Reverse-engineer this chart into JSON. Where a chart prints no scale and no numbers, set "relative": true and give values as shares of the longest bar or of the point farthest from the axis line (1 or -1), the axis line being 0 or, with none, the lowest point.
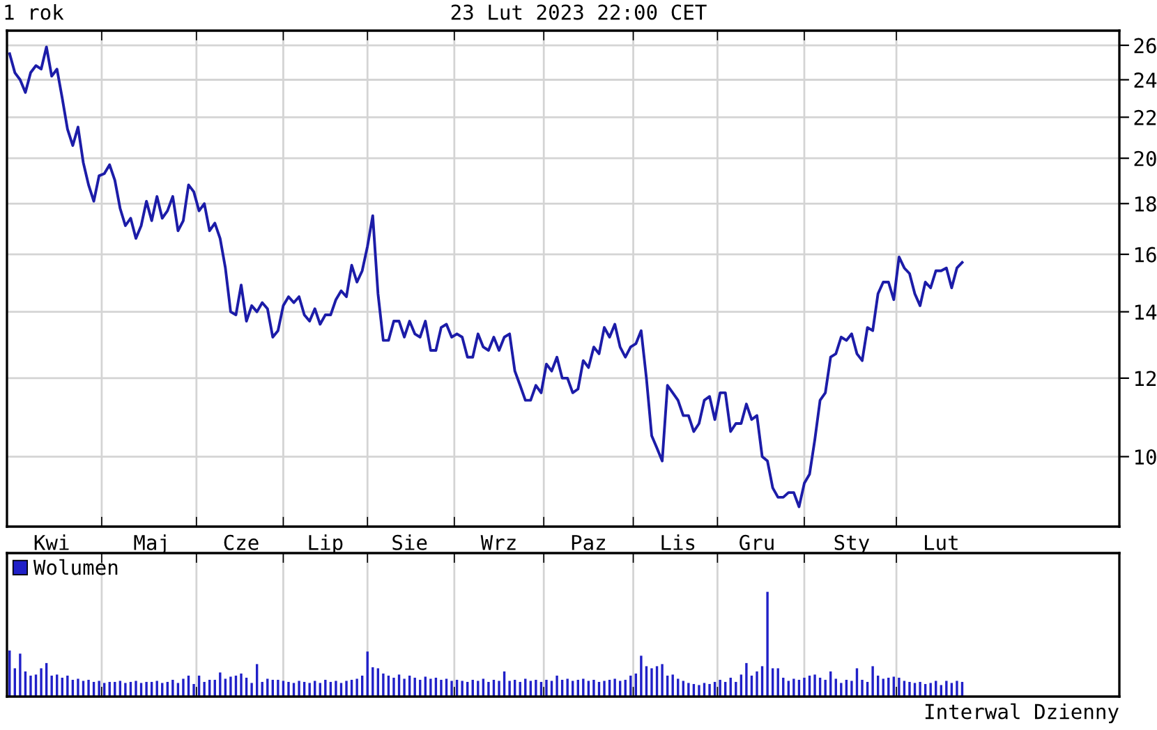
{
  "chart_data": [
    {
      "type": "line",
      "title": "1 rok",
      "subtitle": "23 Lut 2023 22:00 CET",
      "categories": [
        null,
        null,
        null,
        null,
        null,
        null,
        null,
        null,
        "Kwi",
        null,
        null,
        null,
        null,
        null,
        null,
        null,
        null,
        null,
        null,
        null,
        null,
        null,
        null,
        null,
        null,
        null,
        null,
        "Maj",
        null,
        null,
        null,
        null,
        null,
        null,
        null,
        null,
        null,
        null,
        null,
        null,
        null,
        null,
        null,
        null,
        "Cze",
        null,
        null,
        null,
        null,
        null,
        null,
        null,
        null,
        null,
        null,
        null,
        null,
        null,
        null,
        null,
        "Lip",
        null,
        null,
        null,
        null,
        null,
        null,
        null,
        null,
        null,
        null,
        null,
        null,
        null,
        null,
        null,
        "Sie",
        null,
        null,
        null,
        null,
        null,
        null,
        null,
        null,
        null,
        null,
        null,
        null,
        null,
        null,
        null,
        null,
        "Wrz",
        null,
        null,
        null,
        null,
        null,
        null,
        null,
        null,
        null,
        null,
        null,
        null,
        null,
        null,
        null,
        null,
        "Paz",
        null,
        null,
        null,
        null,
        null,
        null,
        null,
        null,
        null,
        null,
        null,
        null,
        null,
        null,
        null,
        null,
        "Lis",
        null,
        null,
        null,
        null,
        null,
        null,
        null,
        null,
        null,
        null,
        null,
        null,
        null,
        null,
        "Gru",
        null,
        null,
        null,
        null,
        null,
        null,
        null,
        null,
        null,
        null,
        null,
        null,
        null,
        null,
        null,
        null,
        null,
        "Sty",
        null,
        null,
        null,
        null,
        null,
        null,
        null,
        null,
        null,
        null,
        null,
        null,
        null,
        null,
        null,
        null,
        "Lut",
        null,
        null,
        null,
        null
      ],
      "series": [
        {
          "color": "#1c1ca8",
          "values": [
            25.5,
            24.4,
            24.0,
            23.3,
            24.4,
            24.8,
            24.6,
            25.9,
            24.2,
            24.6,
            23.0,
            21.4,
            20.6,
            21.5,
            19.8,
            18.8,
            18.1,
            19.2,
            19.3,
            19.7,
            19.0,
            17.8,
            17.1,
            17.4,
            16.6,
            17.1,
            18.1,
            17.3,
            18.3,
            17.4,
            17.7,
            18.3,
            16.9,
            17.3,
            18.8,
            18.5,
            17.7,
            18.0,
            16.9,
            17.2,
            16.6,
            15.5,
            14.0,
            13.9,
            14.9,
            13.7,
            14.2,
            14.0,
            14.3,
            14.1,
            13.2,
            13.4,
            14.2,
            14.5,
            14.3,
            14.5,
            13.9,
            13.7,
            14.1,
            13.6,
            13.9,
            13.9,
            14.4,
            14.7,
            14.5,
            15.6,
            15.0,
            15.4,
            16.3,
            17.5,
            14.6,
            13.1,
            13.1,
            13.7,
            13.7,
            13.2,
            13.7,
            13.3,
            13.2,
            13.7,
            12.8,
            12.8,
            13.5,
            13.6,
            13.2,
            13.3,
            13.2,
            12.6,
            12.6,
            13.3,
            12.9,
            12.8,
            13.2,
            12.8,
            13.2,
            13.3,
            12.2,
            11.8,
            11.4,
            11.4,
            11.8,
            11.6,
            12.4,
            12.2,
            12.6,
            12.0,
            12.0,
            11.6,
            11.7,
            12.5,
            12.3,
            12.9,
            12.7,
            13.5,
            13.2,
            13.6,
            12.9,
            12.6,
            12.9,
            13.0,
            13.4,
            12.0,
            10.5,
            10.2,
            9.9,
            11.8,
            11.6,
            11.4,
            11.0,
            11.0,
            10.6,
            10.8,
            11.4,
            11.5,
            10.9,
            11.6,
            11.6,
            10.6,
            10.8,
            10.8,
            11.3,
            10.9,
            11.0,
            10.0,
            9.9,
            9.3,
            9.1,
            9.1,
            9.2,
            9.2,
            8.9,
            9.4,
            9.6,
            10.4,
            11.4,
            11.6,
            12.6,
            12.7,
            13.2,
            13.1,
            13.3,
            12.7,
            12.5,
            13.5,
            13.4,
            14.6,
            15.0,
            15.0,
            14.4,
            15.9,
            15.5,
            15.3,
            14.6,
            14.2,
            15.0,
            14.8,
            15.4,
            15.4,
            15.5,
            14.8,
            15.5,
            15.7
          ]
        }
      ],
      "log": true,
      "ylim": [
        8.5,
        26.9
      ],
      "yticks": [
        10,
        12,
        14,
        16,
        18,
        20,
        22,
        24,
        26
      ],
      "grid": true
    },
    {
      "type": "bar",
      "relative": true,
      "categories": [
        null,
        null,
        null,
        null,
        null,
        null,
        null,
        null,
        null,
        null,
        null,
        null,
        null,
        null,
        null,
        null,
        null,
        null,
        null,
        null,
        null,
        null,
        null,
        null,
        null,
        null,
        null,
        null,
        null,
        null,
        null,
        null,
        null,
        null,
        null,
        null,
        null,
        null,
        null,
        null,
        null,
        null,
        null,
        null,
        null,
        null,
        null,
        null,
        null,
        null,
        null,
        null,
        null,
        null,
        null,
        null,
        null,
        null,
        null,
        null,
        null,
        null,
        null,
        null,
        null,
        null,
        null,
        null,
        null,
        null,
        null,
        null,
        null,
        null,
        null,
        null,
        null,
        null,
        null,
        null,
        null,
        null,
        null,
        null,
        null,
        null,
        null,
        null,
        null,
        null,
        null,
        null,
        null,
        null,
        null,
        null,
        null,
        null,
        null,
        null,
        null,
        null,
        null,
        null,
        null,
        null,
        null,
        null,
        null,
        null,
        null,
        null,
        null,
        null,
        null,
        null,
        null,
        null,
        null,
        null,
        null,
        null,
        null,
        null,
        null,
        null,
        null,
        null,
        null,
        null,
        null,
        null,
        null,
        null,
        null,
        null,
        null,
        null,
        null,
        null,
        null,
        null,
        null,
        null,
        null,
        null,
        null,
        null,
        null,
        null,
        null,
        null,
        null,
        null,
        null,
        null,
        null,
        null,
        null,
        null,
        null,
        null,
        null,
        null,
        null,
        null,
        null,
        null,
        null,
        null,
        null,
        null,
        null,
        null,
        null,
        null,
        null,
        null,
        null,
        null,
        null,
        null
      ],
      "series": [
        {
          "name": "Wolumen",
          "color": "#2020c8",
          "values": [
            0.44,
            0.27,
            0.41,
            0.24,
            0.2,
            0.21,
            0.27,
            0.32,
            0.2,
            0.21,
            0.18,
            0.2,
            0.16,
            0.17,
            0.15,
            0.16,
            0.14,
            0.15,
            0.13,
            0.14,
            0.14,
            0.15,
            0.13,
            0.14,
            0.15,
            0.13,
            0.14,
            0.14,
            0.15,
            0.13,
            0.14,
            0.16,
            0.13,
            0.17,
            0.2,
            0.12,
            0.2,
            0.14,
            0.16,
            0.16,
            0.23,
            0.17,
            0.19,
            0.2,
            0.22,
            0.18,
            0.13,
            0.31,
            0.14,
            0.17,
            0.16,
            0.16,
            0.15,
            0.14,
            0.13,
            0.15,
            0.14,
            0.13,
            0.15,
            0.13,
            0.16,
            0.14,
            0.15,
            0.13,
            0.15,
            0.16,
            0.17,
            0.2,
            0.43,
            0.28,
            0.27,
            0.22,
            0.2,
            0.18,
            0.21,
            0.17,
            0.2,
            0.18,
            0.16,
            0.19,
            0.17,
            0.18,
            0.16,
            0.17,
            0.15,
            0.16,
            0.15,
            0.14,
            0.16,
            0.15,
            0.17,
            0.14,
            0.16,
            0.15,
            0.24,
            0.15,
            0.16,
            0.14,
            0.17,
            0.15,
            0.16,
            0.14,
            0.16,
            0.15,
            0.2,
            0.16,
            0.17,
            0.15,
            0.16,
            0.17,
            0.15,
            0.16,
            0.14,
            0.15,
            0.16,
            0.17,
            0.15,
            0.16,
            0.2,
            0.22,
            0.39,
            0.29,
            0.27,
            0.29,
            0.31,
            0.2,
            0.21,
            0.17,
            0.15,
            0.13,
            0.12,
            0.11,
            0.13,
            0.12,
            0.14,
            0.16,
            0.14,
            0.18,
            0.14,
            0.21,
            0.32,
            0.2,
            0.24,
            0.29,
            1.0,
            0.27,
            0.27,
            0.18,
            0.15,
            0.17,
            0.16,
            0.18,
            0.2,
            0.21,
            0.18,
            0.16,
            0.24,
            0.17,
            0.13,
            0.16,
            0.15,
            0.27,
            0.16,
            0.14,
            0.29,
            0.2,
            0.17,
            0.18,
            0.19,
            0.18,
            0.15,
            0.14,
            0.13,
            0.14,
            0.12,
            0.13,
            0.15,
            0.11,
            0.15,
            0.13,
            0.15,
            0.14
          ]
        }
      ],
      "grid": "x",
      "legend": "top left",
      "annotations": [
        "Interwal Dzienny"
      ]
    }
  ]
}
